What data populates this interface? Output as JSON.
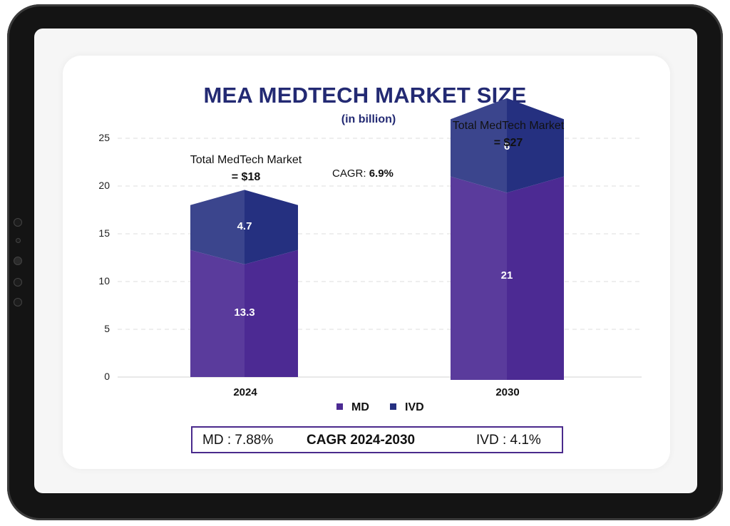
{
  "chart_data": {
    "type": "bar",
    "stacked": true,
    "title": "MEA MEDTECH MARKET SIZE",
    "subtitle": "(in billion)",
    "categories": [
      "2024",
      "2030"
    ],
    "series": [
      {
        "name": "MD",
        "values": [
          13.3,
          21
        ],
        "color": "#4c2a93"
      },
      {
        "name": "IVD",
        "values": [
          4.7,
          6
        ],
        "color": "#253080"
      }
    ],
    "ylim": [
      0,
      25
    ],
    "yticks": [
      "0",
      "5",
      "10",
      "15",
      "20",
      "25"
    ],
    "grid": true,
    "legend_position": "bottom",
    "annotations": {
      "total_2024_line1": "Total MedTech Market",
      "total_2024_line2": "= $18",
      "total_2030_line1": "Total MedTech Market",
      "total_2030_line2": "= $27",
      "cagr_label": "CAGR:",
      "cagr_value": "6.9%"
    },
    "cagr_box": {
      "md": "MD : 7.88%",
      "center": "CAGR 2024-2030",
      "ivd": "IVD : 4.1%"
    }
  }
}
